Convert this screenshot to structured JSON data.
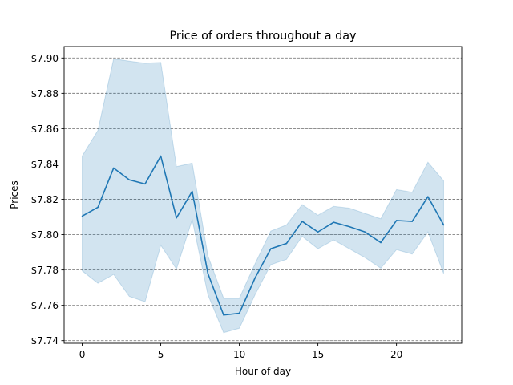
{
  "chart_data": {
    "type": "line",
    "title": "Price of orders throughout a day",
    "xlabel": "Hour of day",
    "ylabel": "Prices",
    "xlim": [
      -1.15,
      24.15
    ],
    "ylim": [
      7.7385,
      7.9065
    ],
    "x_ticks": [
      0,
      5,
      10,
      15,
      20
    ],
    "x_tick_labels": [
      "0",
      "5",
      "10",
      "15",
      "20"
    ],
    "y_ticks": [
      7.74,
      7.76,
      7.78,
      7.8,
      7.82,
      7.84,
      7.86,
      7.88,
      7.9
    ],
    "y_tick_labels": [
      "$7.74",
      "$7.76",
      "$7.78",
      "$7.80",
      "$7.82",
      "$7.84",
      "$7.86",
      "$7.88",
      "$7.90"
    ],
    "grid": "horizontal dashed",
    "series": [
      {
        "x": [
          0,
          1,
          2,
          3,
          4,
          5,
          6,
          7,
          8,
          9,
          10,
          11,
          12,
          13,
          14,
          15,
          16,
          17,
          18,
          19,
          20,
          21,
          22,
          23
        ],
        "values": [
          7.8105,
          7.8155,
          7.8377,
          7.831,
          7.8287,
          7.8445,
          7.8095,
          7.8245,
          7.778,
          7.7545,
          7.7555,
          7.7755,
          7.792,
          7.795,
          7.8075,
          7.8015,
          7.807,
          7.8045,
          7.8015,
          7.7955,
          7.808,
          7.8075,
          7.8215,
          7.8055
        ],
        "ci_lower": [
          7.7795,
          7.7725,
          7.7775,
          7.765,
          7.762,
          7.794,
          7.7805,
          7.8085,
          7.766,
          7.7445,
          7.747,
          7.766,
          7.783,
          7.786,
          7.799,
          7.792,
          7.797,
          7.792,
          7.787,
          7.781,
          7.7915,
          7.789,
          7.8015,
          7.778
        ],
        "ci_upper": [
          7.8445,
          7.859,
          7.8995,
          7.8982,
          7.897,
          7.8975,
          7.8385,
          7.8405,
          7.788,
          7.764,
          7.764,
          7.7835,
          7.802,
          7.8055,
          7.817,
          7.811,
          7.816,
          7.815,
          7.812,
          7.809,
          7.8255,
          7.824,
          7.841,
          7.8305
        ],
        "color": "#1f77b4",
        "band_color": "#1f77b4"
      }
    ]
  }
}
